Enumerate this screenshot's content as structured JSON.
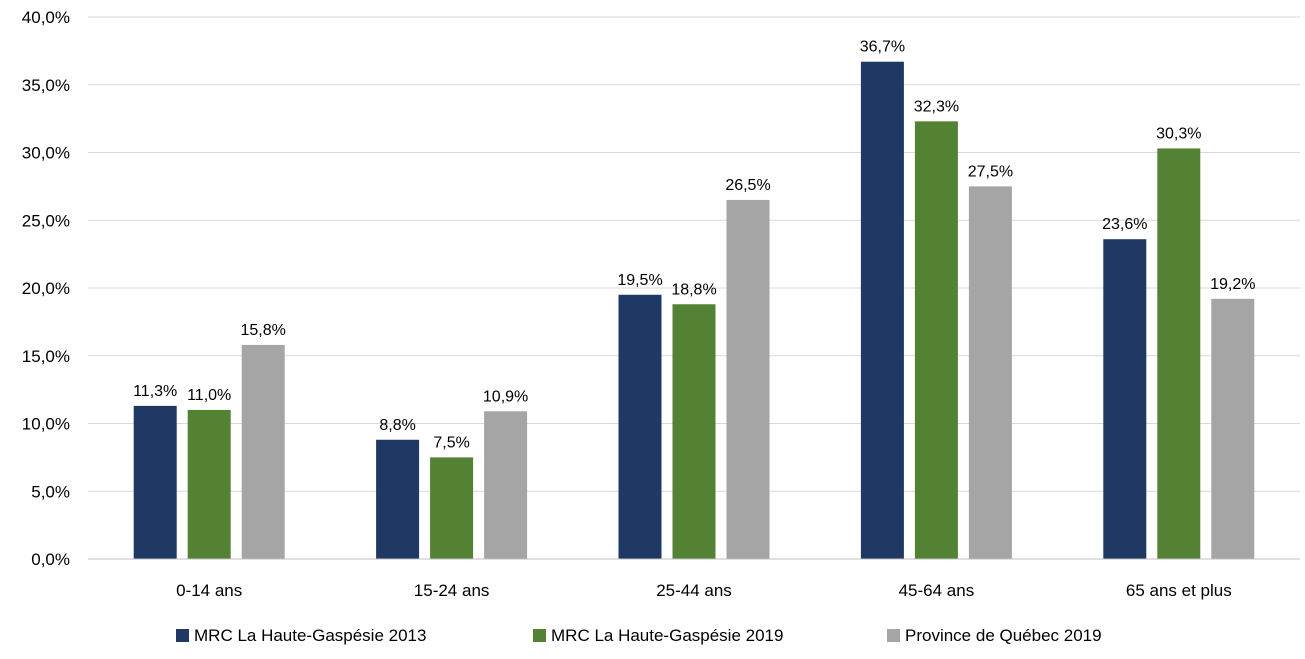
{
  "chart_data": {
    "type": "bar",
    "title": "",
    "xlabel": "",
    "ylabel": "",
    "categories": [
      "0-14 ans",
      "15-24 ans",
      "25-44 ans",
      "45-64 ans",
      "65 ans et plus"
    ],
    "series": [
      {
        "name": "MRC La Haute-Gaspésie 2013",
        "color": "#203864",
        "values": [
          11.3,
          8.8,
          19.5,
          36.7,
          23.6
        ],
        "labels": [
          "11,3%",
          "8,8%",
          "19,5%",
          "36,7%",
          "23,6%"
        ]
      },
      {
        "name": "MRC La Haute-Gaspésie 2019",
        "color": "#548235",
        "values": [
          11.0,
          7.5,
          18.8,
          32.3,
          30.3
        ],
        "labels": [
          "11,0%",
          "7,5%",
          "18,8%",
          "32,3%",
          "30,3%"
        ]
      },
      {
        "name": "Province de Québec 2019",
        "color": "#a5a5a5",
        "values": [
          15.8,
          10.9,
          26.5,
          27.5,
          19.2
        ],
        "labels": [
          "15,8%",
          "10,9%",
          "26,5%",
          "27,5%",
          "19,2%"
        ]
      }
    ],
    "ylim": [
      0,
      40
    ],
    "yticks": [
      0,
      5,
      10,
      15,
      20,
      25,
      30,
      35,
      40
    ],
    "ytick_labels": [
      "0,0%",
      "5,0%",
      "10,0%",
      "15,0%",
      "20,0%",
      "25,0%",
      "30,0%",
      "35,0%",
      "40,0%"
    ],
    "grid": true,
    "legend_position": "bottom"
  }
}
